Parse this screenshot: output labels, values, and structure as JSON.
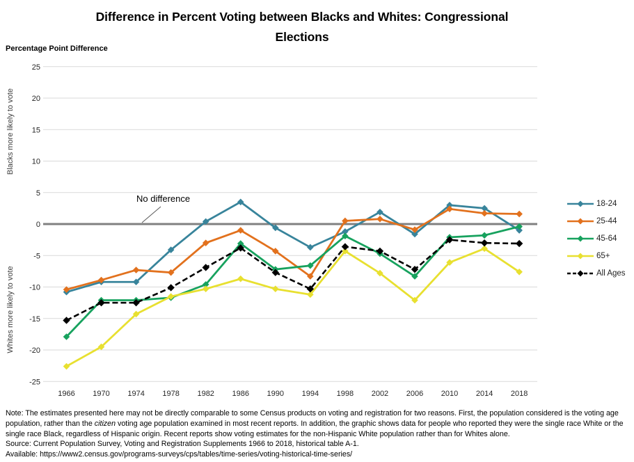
{
  "title": {
    "line1": "Difference in Percent Voting between Blacks and Whites: Congressional",
    "line2": "Elections"
  },
  "chart_data": {
    "type": "line",
    "title": "Difference in Percent Voting between Blacks and Whites: Congressional Elections",
    "y_axis_title": "Percentage Point Difference",
    "y_axis_label_upper": "Blacks more likely to vote",
    "y_axis_label_lower": "Whites more likely to vote",
    "annotation": "No difference",
    "legend_position": "right",
    "grid": true,
    "ylim": [
      -25,
      25
    ],
    "y_ticks": [
      25,
      20,
      15,
      10,
      5,
      0,
      -5,
      -10,
      -15,
      -20,
      -25
    ],
    "zero_line_color": "#808080",
    "grid_color": "#d9d9d9",
    "categories": [
      "1966",
      "1970",
      "1974",
      "1978",
      "1982",
      "1986",
      "1990",
      "1994",
      "1998",
      "2002",
      "2006",
      "2010",
      "2014",
      "2018"
    ],
    "series": [
      {
        "name": "18-24",
        "color": "#38849B",
        "dashed": false,
        "values": [
          -10.8,
          -9.2,
          -9.2,
          -4.1,
          0.4,
          3.5,
          -0.6,
          -3.7,
          -1.2,
          1.9,
          -1.6,
          3.0,
          2.5,
          -1.0
        ]
      },
      {
        "name": "25-44",
        "color": "#E2711D",
        "dashed": false,
        "values": [
          -10.4,
          -8.9,
          -7.3,
          -7.7,
          -3.0,
          -1.0,
          -4.3,
          -8.3,
          0.5,
          0.8,
          -0.9,
          2.4,
          1.7,
          1.6
        ]
      },
      {
        "name": "45-64",
        "color": "#17A25E",
        "dashed": false,
        "values": [
          -17.9,
          -12.1,
          -12.1,
          -11.7,
          -9.6,
          -3.1,
          -7.2,
          -6.6,
          -1.9,
          -4.7,
          -8.3,
          -2.1,
          -1.8,
          -0.4
        ]
      },
      {
        "name": "65+",
        "color": "#E8E030",
        "dashed": false,
        "values": [
          -22.6,
          -19.5,
          -14.3,
          -11.5,
          -10.3,
          -8.7,
          -10.3,
          -11.2,
          -4.3,
          -7.8,
          -12.1,
          -6.1,
          -3.9,
          -7.6
        ]
      },
      {
        "name": "All Ages",
        "color": "#000000",
        "dashed": true,
        "values": [
          -15.3,
          -12.5,
          -12.5,
          -10.1,
          -6.9,
          -3.8,
          -7.7,
          -10.3,
          -3.6,
          -4.3,
          -7.2,
          -2.5,
          -3.0,
          -3.1
        ]
      }
    ]
  },
  "notes": {
    "note_part1": "Note: The estimates presented here may not be directly comparable to some Census products on voting and registration for two reasons. First, the population considered is the voting age population, rather than the ",
    "note_italic": "citizen",
    "note_part2": " voting age population examined in most recent reports. In addition, the graphic shows data for people who reported they were the single race White or the single race Black, regardless of Hispanic origin. Recent reports show voting estimates for the non-Hispanic White population rather than for Whites alone.",
    "source": "Source: Current Population Survey, Voting and Registration Supplements 1966 to 2018, historical table A-1.",
    "available": "Available: https://www2.census.gov/programs-surveys/cps/tables/time-series/voting-historical-time-series/"
  }
}
